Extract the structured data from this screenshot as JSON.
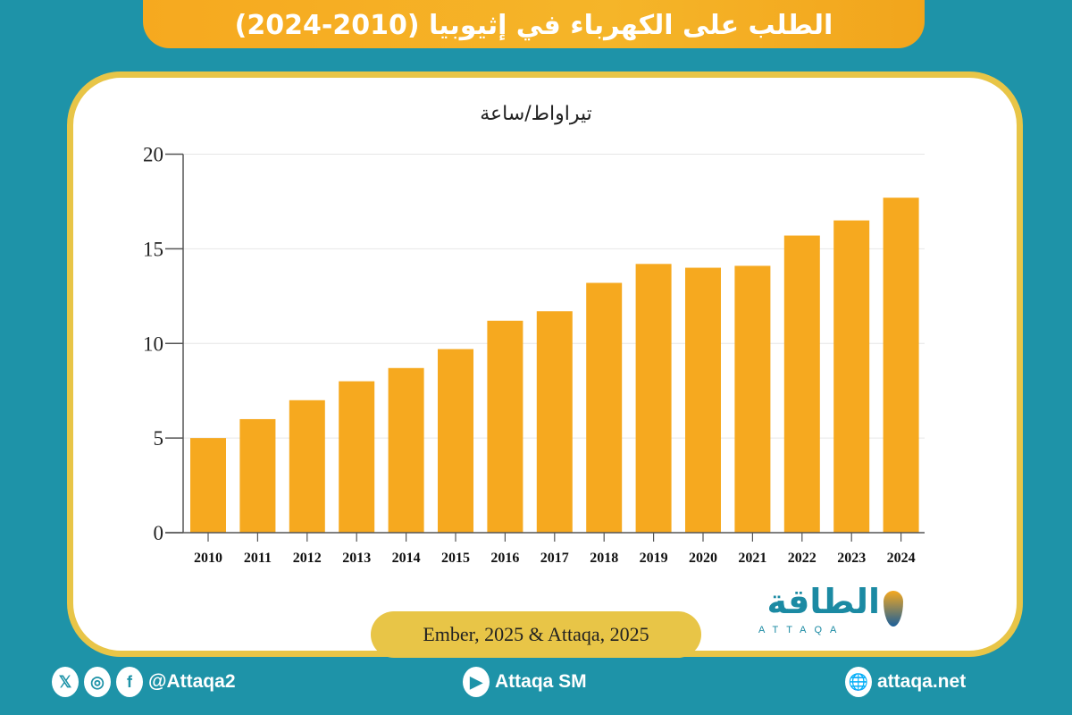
{
  "title": "الطلب على الكهرباء في إثيوبيا (2010-2024)",
  "source": "Ember, 2025 & Attaqa, 2025",
  "logo": {
    "arabic": "الطاقة",
    "latin": "ATTAQA"
  },
  "footer": {
    "social_handle": "@Attaqa2",
    "youtube": "Attaqa SM",
    "website": "attaqa.net",
    "icons": [
      "x-icon",
      "instagram-icon",
      "facebook-icon",
      "youtube-icon",
      "globe-icon"
    ]
  },
  "colors": {
    "background": "#1e93a8",
    "bar": "#f6a91f",
    "title_bar": "#f5b529",
    "frame": "#e8c547"
  },
  "chart_data": {
    "type": "bar",
    "title": "الطلب على الكهرباء في إثيوبيا (2010-2024)",
    "ylabel": "تيراواط/ساعة",
    "xlabel": "",
    "categories": [
      "2010",
      "2011",
      "2012",
      "2013",
      "2014",
      "2015",
      "2016",
      "2017",
      "2018",
      "2019",
      "2020",
      "2021",
      "2022",
      "2023",
      "2024"
    ],
    "values": [
      5.0,
      6.0,
      7.0,
      8.0,
      8.7,
      9.7,
      11.2,
      11.7,
      13.2,
      14.2,
      14.0,
      14.1,
      15.7,
      16.5,
      17.7
    ],
    "ylim": [
      0,
      20
    ],
    "yticks": [
      "0",
      "5",
      "10",
      "15",
      "20"
    ],
    "grid": true,
    "legend": "none"
  }
}
